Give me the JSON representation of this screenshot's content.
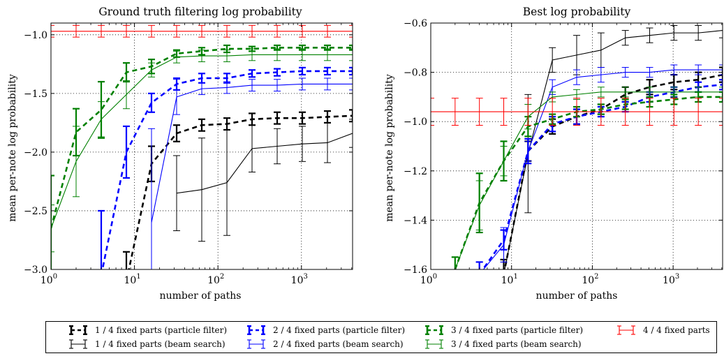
{
  "chart_data": [
    {
      "type": "line",
      "title": "Ground truth filtering log probability",
      "xlabel": "number of paths",
      "ylabel": "mean per-note log probability",
      "xscale": "log",
      "xlim": [
        1,
        4096
      ],
      "ylim": [
        -3.0,
        -0.9
      ],
      "yticks": [
        -3.0,
        -2.5,
        -2.0,
        -1.5,
        -1.0
      ],
      "ytick_labels": [
        "−3.0",
        "−2.5",
        "−2.0",
        "−1.5",
        "−1.0"
      ],
      "xticks": [
        1,
        10,
        100,
        1000
      ],
      "xtick_labels": [
        [
          "10",
          "0"
        ],
        [
          "10",
          "1"
        ],
        [
          "10",
          "2"
        ],
        [
          "10",
          "3"
        ]
      ],
      "grid": true,
      "series": [
        {
          "name": "1 / 4 fixed parts (particle filter)",
          "color": "#000000",
          "style": "dashed",
          "x": [
            8,
            16,
            32,
            64,
            128,
            256,
            512,
            1024,
            2048,
            4096
          ],
          "y": [
            -3.1,
            -2.1,
            -1.84,
            -1.77,
            -1.76,
            -1.72,
            -1.71,
            -1.71,
            -1.7,
            -1.69
          ],
          "err": [
            0.25,
            0.15,
            0.07,
            0.05,
            0.05,
            0.05,
            0.05,
            0.05,
            0.05,
            0.05
          ]
        },
        {
          "name": "1 / 4 fixed parts (beam search)",
          "color": "#000000",
          "style": "solid",
          "x": [
            32,
            64,
            128,
            256,
            512,
            1024,
            2048,
            4096
          ],
          "y": [
            -2.35,
            -2.32,
            -2.26,
            -1.97,
            -1.95,
            -1.93,
            -1.92,
            -1.84
          ],
          "err": [
            0.32,
            0.44,
            0.45,
            0.2,
            0.15,
            0.15,
            0.17,
            0.12
          ]
        },
        {
          "name": "2 / 4 fixed parts (particle filter)",
          "color": "#0000ff",
          "style": "dashed",
          "x": [
            4,
            8,
            16,
            32,
            64,
            128,
            256,
            512,
            1024,
            2048,
            4096
          ],
          "y": [
            -3.05,
            -2.0,
            -1.58,
            -1.42,
            -1.37,
            -1.37,
            -1.33,
            -1.32,
            -1.31,
            -1.31,
            -1.31
          ],
          "err": [
            0.55,
            0.22,
            0.08,
            0.05,
            0.04,
            0.04,
            0.03,
            0.03,
            0.03,
            0.03,
            0.03
          ]
        },
        {
          "name": "2 / 4 fixed parts (beam search)",
          "color": "#0000ff",
          "style": "solid",
          "x": [
            16,
            32,
            64,
            128,
            256,
            512,
            1024,
            2048,
            4096
          ],
          "y": [
            -2.6,
            -1.53,
            -1.46,
            -1.45,
            -1.43,
            -1.43,
            -1.42,
            -1.42,
            -1.42
          ],
          "err": [
            0.8,
            0.15,
            0.05,
            0.05,
            0.05,
            0.05,
            0.05,
            0.05,
            0.05
          ]
        },
        {
          "name": "3 / 4 fixed parts (particle filter)",
          "color": "#008000",
          "style": "dashed",
          "x": [
            1,
            2,
            4,
            8,
            16,
            32,
            64,
            128,
            256,
            512,
            1024,
            2048,
            4096
          ],
          "y": [
            -2.65,
            -1.83,
            -1.64,
            -1.32,
            -1.27,
            -1.16,
            -1.14,
            -1.12,
            -1.12,
            -1.11,
            -1.11,
            -1.11,
            -1.11
          ],
          "err": [
            0.45,
            0.2,
            0.24,
            0.08,
            0.06,
            0.03,
            0.03,
            0.03,
            0.02,
            0.02,
            0.02,
            0.02,
            0.02
          ]
        },
        {
          "name": "3 / 4 fixed parts (beam search)",
          "color": "#008000",
          "style": "solid",
          "x": [
            1,
            2,
            4,
            8,
            16,
            32,
            64,
            128,
            256,
            512,
            1024,
            2048,
            4096
          ],
          "y": [
            -2.65,
            -2.08,
            -1.72,
            -1.51,
            -1.3,
            -1.19,
            -1.18,
            -1.18,
            -1.17,
            -1.17,
            -1.17,
            -1.17,
            -1.17
          ],
          "err": [
            0.2,
            0.3,
            0.15,
            0.12,
            0.06,
            0.05,
            0.05,
            0.05,
            0.05,
            0.05,
            0.05,
            0.05,
            0.05
          ]
        },
        {
          "name": "4 / 4 fixed parts",
          "color": "#ff0000",
          "style": "solid",
          "x": [
            1,
            2,
            4,
            8,
            16,
            32,
            64,
            128,
            256,
            512,
            1024,
            2048,
            4096
          ],
          "y": [
            -0.97,
            -0.97,
            -0.97,
            -0.97,
            -0.97,
            -0.97,
            -0.97,
            -0.97,
            -0.97,
            -0.97,
            -0.97,
            -0.97,
            -0.97
          ],
          "err": [
            0.05,
            0.05,
            0.05,
            0.05,
            0.05,
            0.05,
            0.05,
            0.05,
            0.05,
            0.05,
            0.05,
            0.05,
            0.05
          ]
        }
      ]
    },
    {
      "type": "line",
      "title": "Best log probability",
      "xlabel": "number of paths",
      "ylabel": "mean per-note log probability",
      "xscale": "log",
      "xlim": [
        1,
        4096
      ],
      "ylim": [
        -1.6,
        -0.6
      ],
      "yticks": [
        -1.6,
        -1.4,
        -1.2,
        -1.0,
        -0.8,
        -0.6
      ],
      "ytick_labels": [
        "−1.6",
        "−1.4",
        "−1.2",
        "−1.0",
        "−0.8",
        "−0.6"
      ],
      "xticks": [
        1,
        10,
        100,
        1000
      ],
      "xtick_labels": [
        [
          "10",
          "0"
        ],
        [
          "10",
          "1"
        ],
        [
          "10",
          "2"
        ],
        [
          "10",
          "3"
        ]
      ],
      "grid": true,
      "series": [
        {
          "name": "1 / 4 fixed parts (particle filter)",
          "color": "#000000",
          "style": "dashed",
          "x": [
            8,
            16,
            32,
            64,
            128,
            256,
            512,
            1024,
            2048,
            4096
          ],
          "y": [
            -1.62,
            -1.12,
            -1.02,
            -0.98,
            -0.95,
            -0.89,
            -0.86,
            -0.84,
            -0.83,
            -0.81
          ],
          "err": [
            0.06,
            0.04,
            0.03,
            0.03,
            0.02,
            0.03,
            0.03,
            0.03,
            0.03,
            0.03
          ]
        },
        {
          "name": "1 / 4 fixed parts (beam search)",
          "color": "#000000",
          "style": "solid",
          "x": [
            8,
            16,
            32,
            64,
            128,
            256,
            512,
            1024,
            2048,
            4096
          ],
          "y": [
            -1.62,
            -1.13,
            -0.75,
            -0.73,
            -0.71,
            -0.66,
            -0.65,
            -0.64,
            -0.64,
            -0.63
          ],
          "err": [
            0.05,
            0.24,
            0.05,
            0.08,
            0.07,
            0.03,
            0.03,
            0.03,
            0.03,
            0.03
          ]
        },
        {
          "name": "2 / 4 fixed parts (particle filter)",
          "color": "#0000ff",
          "style": "dashed",
          "x": [
            4,
            8,
            16,
            32,
            64,
            128,
            256,
            512,
            1024,
            2048,
            4096
          ],
          "y": [
            -1.62,
            -1.48,
            -1.12,
            -1.01,
            -0.98,
            -0.96,
            -0.94,
            -0.9,
            -0.88,
            -0.86,
            -0.85
          ],
          "err": [
            0.05,
            0.04,
            0.05,
            0.03,
            0.03,
            0.02,
            0.02,
            0.02,
            0.02,
            0.02,
            0.02
          ]
        },
        {
          "name": "2 / 4 fixed parts (beam search)",
          "color": "#0000ff",
          "style": "solid",
          "x": [
            4,
            8,
            16,
            32,
            64,
            128,
            256,
            512,
            1024,
            2048,
            4096
          ],
          "y": [
            -1.62,
            -1.5,
            -1.12,
            -0.86,
            -0.82,
            -0.81,
            -0.8,
            -0.8,
            -0.79,
            -0.79,
            -0.79
          ],
          "err": [
            0.05,
            0.07,
            0.04,
            0.03,
            0.03,
            0.03,
            0.02,
            0.02,
            0.02,
            0.02,
            0.02
          ]
        },
        {
          "name": "3 / 4 fixed parts (particle filter)",
          "color": "#008000",
          "style": "dashed",
          "x": [
            2,
            4,
            8,
            16,
            32,
            64,
            128,
            256,
            512,
            1024,
            2048,
            4096
          ],
          "y": [
            -1.6,
            -1.33,
            -1.16,
            -1.02,
            -0.99,
            -0.96,
            -0.95,
            -0.93,
            -0.92,
            -0.91,
            -0.9,
            -0.9
          ],
          "err": [
            0.05,
            0.12,
            0.08,
            0.04,
            0.02,
            0.02,
            0.02,
            0.02,
            0.02,
            0.02,
            0.02,
            0.02
          ]
        },
        {
          "name": "3 / 4 fixed parts (beam search)",
          "color": "#008000",
          "style": "solid",
          "x": [
            2,
            4,
            8,
            16,
            32,
            64,
            128,
            256,
            512,
            1024,
            2048,
            4096
          ],
          "y": [
            -1.6,
            -1.34,
            -1.16,
            -0.98,
            -0.9,
            -0.89,
            -0.88,
            -0.88,
            -0.88,
            -0.88,
            -0.88,
            -0.88
          ],
          "err": [
            0.05,
            0.1,
            0.06,
            0.05,
            0.02,
            0.02,
            0.02,
            0.02,
            0.02,
            0.02,
            0.02,
            0.02
          ]
        },
        {
          "name": "4 / 4 fixed parts",
          "color": "#ff0000",
          "style": "solid",
          "x": [
            1,
            2,
            4,
            8,
            16,
            32,
            64,
            128,
            256,
            512,
            1024,
            2048,
            4096
          ],
          "y": [
            -0.96,
            -0.96,
            -0.96,
            -0.96,
            -0.96,
            -0.96,
            -0.96,
            -0.96,
            -0.96,
            -0.96,
            -0.96,
            -0.96,
            -0.96
          ],
          "err": [
            0.055,
            0.055,
            0.055,
            0.055,
            0.055,
            0.055,
            0.055,
            0.055,
            0.055,
            0.055,
            0.055,
            0.055,
            0.055
          ]
        }
      ]
    }
  ],
  "legend": {
    "placement": "bottom",
    "entries": [
      {
        "label": "1 / 4 fixed parts (particle filter)",
        "color": "#000000",
        "style": "dashed"
      },
      {
        "label": "2 / 4 fixed parts (particle filter)",
        "color": "#0000ff",
        "style": "dashed"
      },
      {
        "label": "3 / 4 fixed parts (particle filter)",
        "color": "#008000",
        "style": "dashed"
      },
      {
        "label": "4 / 4 fixed parts",
        "color": "#ff0000",
        "style": "solid"
      },
      {
        "label": "1 / 4 fixed parts (beam search)",
        "color": "#000000",
        "style": "solid"
      },
      {
        "label": "2 / 4 fixed parts (beam search)",
        "color": "#0000ff",
        "style": "solid"
      },
      {
        "label": "3 / 4 fixed parts (beam search)",
        "color": "#008000",
        "style": "solid"
      }
    ]
  }
}
